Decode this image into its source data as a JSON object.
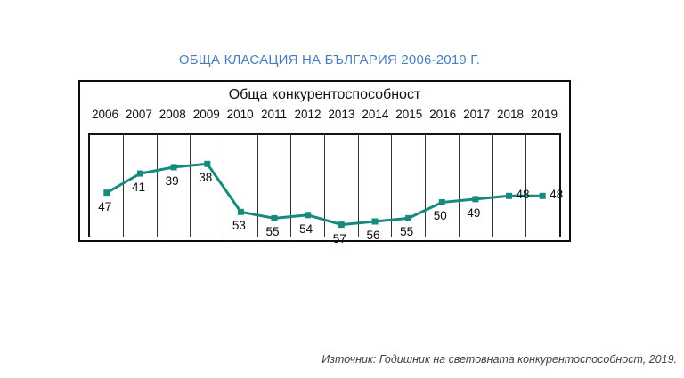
{
  "page": {
    "title": "ОБЩА КЛАСАЦИЯ НА БЪЛГАРИЯ 2006-2019 Г.",
    "source_note": "Източник: Годишник на световната конкурентоспособност, 2019."
  },
  "colors": {
    "title_blue": "#4a7ebb",
    "line_teal": "#178a80",
    "gridline": "#333333",
    "border": "#0d0d0d",
    "label_text": "#0a0a0a",
    "source_text": "#404040"
  },
  "chart_data": {
    "type": "line",
    "title": "Обща конкурентоспособност",
    "categories": [
      "2006",
      "2007",
      "2008",
      "2009",
      "2010",
      "2011",
      "2012",
      "2013",
      "2014",
      "2015",
      "2016",
      "2017",
      "2018",
      "2019"
    ],
    "values": [
      47,
      41,
      39,
      38,
      53,
      55,
      54,
      57,
      56,
      55,
      50,
      49,
      48,
      48
    ],
    "xlabel": "",
    "ylabel": "",
    "ylim": [
      61,
      29
    ],
    "y_axis_inverted": true,
    "grid": "vertical-only",
    "legend": "none",
    "marker": "square",
    "data_labels": true,
    "label_placement": [
      "below",
      "below",
      "below",
      "below",
      "below",
      "below",
      "below",
      "below",
      "below",
      "below",
      "below",
      "below",
      "right",
      "right"
    ]
  }
}
